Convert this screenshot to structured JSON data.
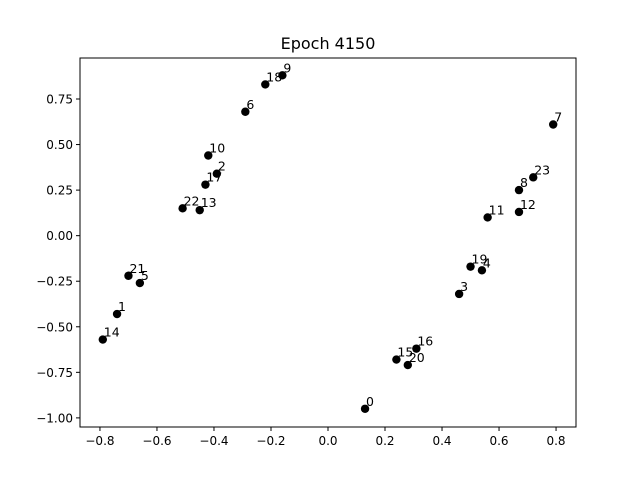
{
  "chart_data": {
    "type": "scatter",
    "title": "Epoch 4150",
    "xlabel": "",
    "ylabel": "",
    "xlim": [
      -0.87,
      0.87
    ],
    "ylim": [
      -1.05,
      0.975
    ],
    "xticks": [
      -0.8,
      -0.6,
      -0.4,
      -0.2,
      0.0,
      0.2,
      0.4,
      0.6,
      0.8
    ],
    "xtick_labels": [
      "−0.8",
      "−0.6",
      "−0.4",
      "−0.2",
      "0.0",
      "0.2",
      "0.4",
      "0.6",
      "0.8"
    ],
    "yticks": [
      -1.0,
      -0.75,
      -0.5,
      -0.25,
      0.0,
      0.25,
      0.5,
      0.75
    ],
    "ytick_labels": [
      "−1.00",
      "−0.75",
      "−0.50",
      "−0.25",
      "0.00",
      "0.25",
      "0.50",
      "0.75"
    ],
    "grid": false,
    "marker_color": "#000000",
    "points": [
      {
        "label": "0",
        "x": 0.13,
        "y": -0.95
      },
      {
        "label": "1",
        "x": -0.74,
        "y": -0.43
      },
      {
        "label": "2",
        "x": -0.39,
        "y": 0.34
      },
      {
        "label": "3",
        "x": 0.46,
        "y": -0.32
      },
      {
        "label": "4",
        "x": 0.54,
        "y": -0.19
      },
      {
        "label": "5",
        "x": -0.66,
        "y": -0.26
      },
      {
        "label": "6",
        "x": -0.29,
        "y": 0.68
      },
      {
        "label": "7",
        "x": 0.79,
        "y": 0.61
      },
      {
        "label": "8",
        "x": 0.67,
        "y": 0.25
      },
      {
        "label": "9",
        "x": -0.16,
        "y": 0.88
      },
      {
        "label": "10",
        "x": -0.42,
        "y": 0.44
      },
      {
        "label": "11",
        "x": 0.56,
        "y": 0.1
      },
      {
        "label": "12",
        "x": 0.67,
        "y": 0.13
      },
      {
        "label": "13",
        "x": -0.45,
        "y": 0.14
      },
      {
        "label": "14",
        "x": -0.79,
        "y": -0.57
      },
      {
        "label": "15",
        "x": 0.24,
        "y": -0.68
      },
      {
        "label": "16",
        "x": 0.31,
        "y": -0.62
      },
      {
        "label": "17",
        "x": -0.43,
        "y": 0.28
      },
      {
        "label": "18",
        "x": -0.22,
        "y": 0.83
      },
      {
        "label": "19",
        "x": 0.5,
        "y": -0.17
      },
      {
        "label": "20",
        "x": 0.28,
        "y": -0.71
      },
      {
        "label": "21",
        "x": -0.7,
        "y": -0.22
      },
      {
        "label": "22",
        "x": -0.51,
        "y": 0.15
      },
      {
        "label": "23",
        "x": 0.72,
        "y": 0.32
      }
    ]
  }
}
